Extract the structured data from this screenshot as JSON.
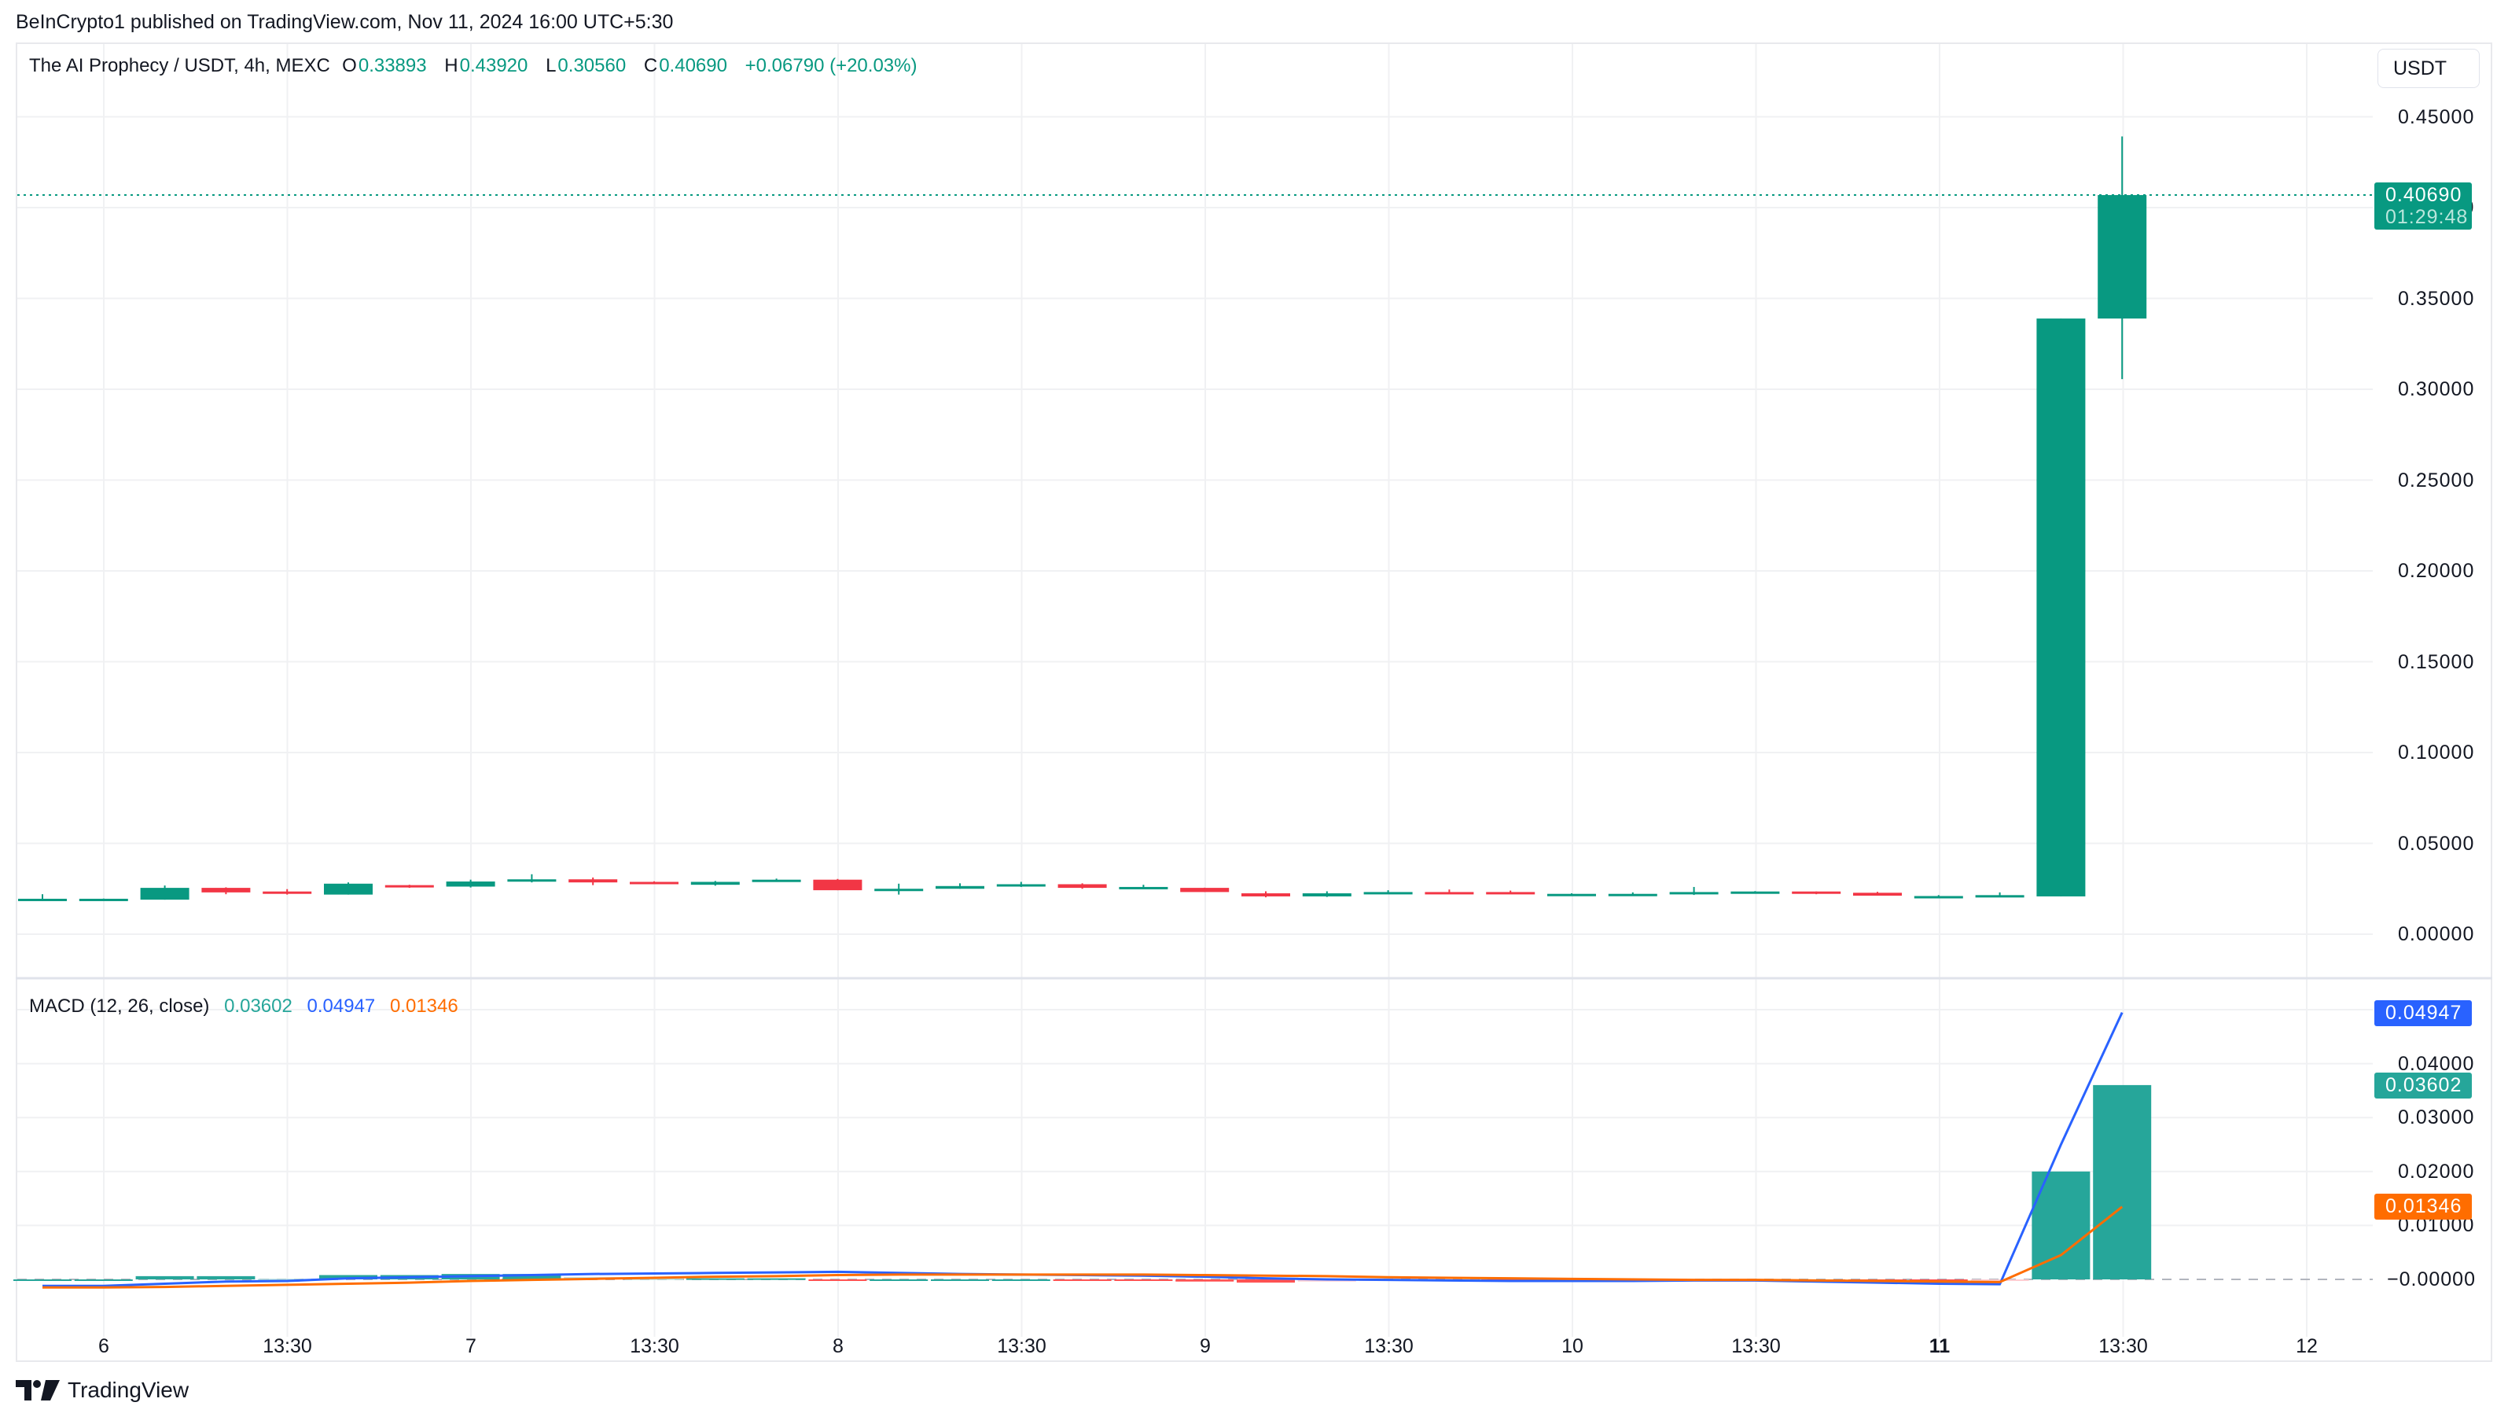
{
  "header": {
    "published": "BeInCrypto1 published on TradingView.com, Nov 11, 2024 16:00 UTC+5:30"
  },
  "legend": {
    "symbol": "The AI Prophecy / USDT, 4h, MEXC",
    "o_label": "O",
    "o_value": "0.33893",
    "h_label": "H",
    "h_value": "0.43920",
    "l_label": "L",
    "l_value": "0.30560",
    "c_label": "C",
    "c_value": "0.40690",
    "change": "+0.06790 (+20.03%)"
  },
  "currency_button": "USDT",
  "price_axis": {
    "ticks": [
      "0.45000",
      "0.40000",
      "0.35000",
      "0.30000",
      "0.25000",
      "0.20000",
      "0.15000",
      "0.10000",
      "0.05000",
      "0.00000"
    ],
    "tick_values": [
      0.45,
      0.4,
      0.35,
      0.3,
      0.25,
      0.2,
      0.15,
      0.1,
      0.05,
      0.0
    ],
    "last_price": "0.40690",
    "countdown": "01:29:48"
  },
  "macd": {
    "label": "MACD (12, 26, close)",
    "histogram_value": "0.03602",
    "macd_value": "0.04947",
    "signal_value": "0.01346",
    "axis_ticks": [
      "0.04000",
      "0.03000",
      "0.02000",
      "0.01000",
      "−0.00000"
    ],
    "axis_tick_values": [
      0.04,
      0.03,
      0.02,
      0.01,
      0.0
    ]
  },
  "time_axis": {
    "labels": [
      {
        "text": "6",
        "bold": false
      },
      {
        "text": "13:30",
        "bold": false
      },
      {
        "text": "7",
        "bold": false
      },
      {
        "text": "13:30",
        "bold": false
      },
      {
        "text": "8",
        "bold": false
      },
      {
        "text": "13:30",
        "bold": false
      },
      {
        "text": "9",
        "bold": false
      },
      {
        "text": "13:30",
        "bold": false
      },
      {
        "text": "10",
        "bold": false
      },
      {
        "text": "13:30",
        "bold": false
      },
      {
        "text": "11",
        "bold": true
      },
      {
        "text": "13:30",
        "bold": false
      },
      {
        "text": "12",
        "bold": false
      }
    ]
  },
  "footer": {
    "brand": "TradingView"
  },
  "colors": {
    "up": "#089981",
    "down": "#f23645",
    "macd_line": "#2962ff",
    "signal_line": "#ff6d00",
    "hist_up_strong": "#26a69a",
    "hist_up_weak": "#b2dfdb",
    "hist_down_strong": "#ff5252",
    "hist_down_weak": "#ffcdd2",
    "grid": "#f0f1f3"
  },
  "chart_data": {
    "type": "candlestick",
    "title": "The AI Prophecy / USDT, 4h, MEXC",
    "xlabel": "",
    "ylabel": "USDT",
    "ylim": [
      -0.02,
      0.47
    ],
    "grid": true,
    "x_ticks": [
      "6",
      "13:30",
      "7",
      "13:30",
      "8",
      "13:30",
      "9",
      "13:30",
      "10",
      "13:30",
      "11",
      "13:30",
      "12"
    ],
    "candles": [
      {
        "o": 0.0185,
        "h": 0.022,
        "l": 0.0183,
        "c": 0.0195
      },
      {
        "o": 0.019,
        "h": 0.0196,
        "l": 0.0187,
        "c": 0.0195
      },
      {
        "o": 0.019,
        "h": 0.0268,
        "l": 0.019,
        "c": 0.0255
      },
      {
        "o": 0.0255,
        "h": 0.0258,
        "l": 0.022,
        "c": 0.023
      },
      {
        "o": 0.0235,
        "h": 0.0248,
        "l": 0.0218,
        "c": 0.0228
      },
      {
        "o": 0.0218,
        "h": 0.0285,
        "l": 0.0218,
        "c": 0.0278
      },
      {
        "o": 0.027,
        "h": 0.0272,
        "l": 0.0255,
        "c": 0.0262
      },
      {
        "o": 0.0262,
        "h": 0.03,
        "l": 0.0257,
        "c": 0.029
      },
      {
        "o": 0.0292,
        "h": 0.033,
        "l": 0.0285,
        "c": 0.0302
      },
      {
        "o": 0.0302,
        "h": 0.0312,
        "l": 0.027,
        "c": 0.0285
      },
      {
        "o": 0.0288,
        "h": 0.0291,
        "l": 0.0275,
        "c": 0.0278
      },
      {
        "o": 0.0272,
        "h": 0.0293,
        "l": 0.0267,
        "c": 0.0288
      },
      {
        "o": 0.0292,
        "h": 0.0306,
        "l": 0.0288,
        "c": 0.03
      },
      {
        "o": 0.03,
        "h": 0.0304,
        "l": 0.0242,
        "c": 0.0242
      },
      {
        "o": 0.0245,
        "h": 0.0278,
        "l": 0.0218,
        "c": 0.025
      },
      {
        "o": 0.025,
        "h": 0.028,
        "l": 0.025,
        "c": 0.0265
      },
      {
        "o": 0.0265,
        "h": 0.0288,
        "l": 0.026,
        "c": 0.0275
      },
      {
        "o": 0.0275,
        "h": 0.028,
        "l": 0.025,
        "c": 0.0255
      },
      {
        "o": 0.0255,
        "h": 0.0272,
        "l": 0.0255,
        "c": 0.026
      },
      {
        "o": 0.0255,
        "h": 0.0256,
        "l": 0.0232,
        "c": 0.0232
      },
      {
        "o": 0.0225,
        "h": 0.0236,
        "l": 0.0203,
        "c": 0.0208
      },
      {
        "o": 0.0208,
        "h": 0.0236,
        "l": 0.0205,
        "c": 0.0225
      },
      {
        "o": 0.0225,
        "h": 0.0242,
        "l": 0.0225,
        "c": 0.0232
      },
      {
        "o": 0.0232,
        "h": 0.0246,
        "l": 0.0228,
        "c": 0.0228
      },
      {
        "o": 0.0232,
        "h": 0.024,
        "l": 0.0222,
        "c": 0.0222
      },
      {
        "o": 0.0218,
        "h": 0.0225,
        "l": 0.0213,
        "c": 0.0222
      },
      {
        "o": 0.022,
        "h": 0.023,
        "l": 0.022,
        "c": 0.0222
      },
      {
        "o": 0.0222,
        "h": 0.026,
        "l": 0.0216,
        "c": 0.0232
      },
      {
        "o": 0.0232,
        "h": 0.0237,
        "l": 0.0227,
        "c": 0.0235
      },
      {
        "o": 0.0235,
        "h": 0.0235,
        "l": 0.022,
        "c": 0.0228
      },
      {
        "o": 0.0228,
        "h": 0.0233,
        "l": 0.0212,
        "c": 0.0212
      },
      {
        "o": 0.0208,
        "h": 0.0215,
        "l": 0.0198,
        "c": 0.021
      },
      {
        "o": 0.021,
        "h": 0.023,
        "l": 0.0206,
        "c": 0.0215
      },
      {
        "o": 0.0208,
        "h": 0.33893,
        "l": 0.0208,
        "c": 0.33893
      },
      {
        "o": 0.33893,
        "h": 0.4392,
        "l": 0.3056,
        "c": 0.4069
      }
    ],
    "macd_pane": {
      "ylim": [
        -0.003,
        0.053
      ],
      "histogram": [
        0.0,
        0.0,
        0.0006,
        0.0006,
        0.0001,
        0.0008,
        0.0008,
        0.001,
        0.001,
        0.0004,
        0.0002,
        0.0002,
        0.0002,
        -0.0002,
        0.0,
        0.0,
        0.0,
        -0.0002,
        -0.0002,
        -0.0004,
        -0.0006,
        -0.0004,
        -0.0003,
        -0.0001,
        -0.0002,
        -0.0001,
        0.0,
        -0.0001,
        -0.0001,
        -0.0003,
        -0.0004,
        -0.0004,
        -0.0001,
        0.02,
        0.03602
      ],
      "macd": [
        -0.0012,
        -0.0012,
        -0.0008,
        -0.0004,
        -0.0003,
        0.0002,
        0.0004,
        0.0006,
        0.0008,
        0.001,
        0.0011,
        0.0012,
        0.0013,
        0.0014,
        0.0012,
        0.001,
        0.0009,
        0.0008,
        0.0007,
        0.0005,
        0.0002,
        0.0,
        -0.0001,
        -0.0002,
        -0.0003,
        -0.0003,
        -0.0003,
        -0.0002,
        -0.0002,
        -0.0004,
        -0.0006,
        -0.0008,
        -0.0009,
        0.025,
        0.04947
      ],
      "signal": [
        -0.0015,
        -0.0015,
        -0.0014,
        -0.0012,
        -0.001,
        -0.0008,
        -0.0006,
        -0.0003,
        -0.0001,
        0.0001,
        0.0003,
        0.0005,
        0.0006,
        0.0008,
        0.0009,
        0.0009,
        0.0009,
        0.0009,
        0.0009,
        0.0008,
        0.0007,
        0.0006,
        0.0004,
        0.0003,
        0.0002,
        0.0001,
        0.0,
        -0.0001,
        -0.0001,
        -0.0002,
        -0.0003,
        -0.0004,
        -0.0005,
        0.0045,
        0.01346
      ]
    }
  }
}
